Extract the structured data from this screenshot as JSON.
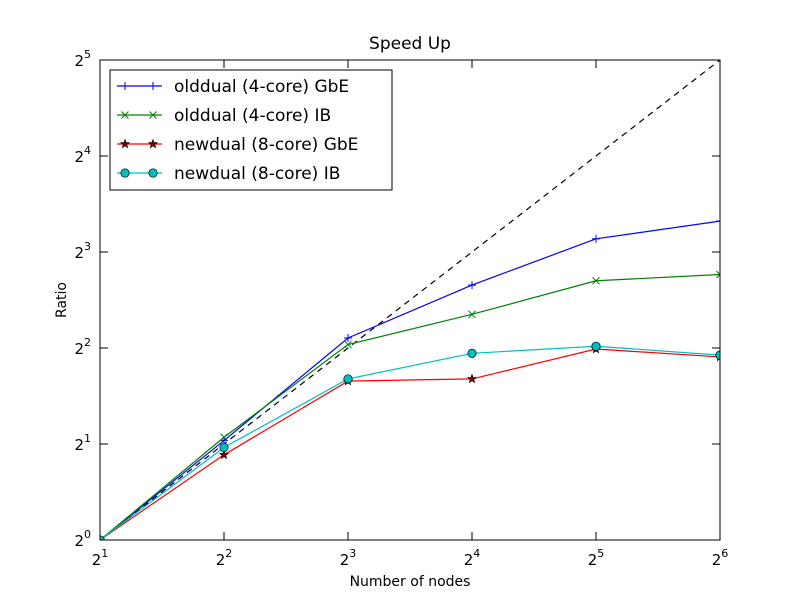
{
  "chart_data": {
    "type": "line",
    "title": "Speed Up",
    "xlabel": "Number of nodes",
    "ylabel": "Ratio",
    "x_scale": "log2",
    "y_scale": "log2",
    "xlim": [
      2,
      64
    ],
    "ylim": [
      1,
      32
    ],
    "x_ticks": [
      2,
      4,
      8,
      16,
      32,
      64
    ],
    "y_ticks": [
      1,
      2,
      4,
      8,
      16,
      32
    ],
    "x": [
      2,
      4,
      8,
      16,
      32,
      64
    ],
    "grid": false,
    "legend_position": "top-left",
    "ideal_line": {
      "style": "dashed",
      "color": "#000000",
      "x": [
        2,
        64
      ],
      "y": [
        1,
        32
      ]
    },
    "series": [
      {
        "name": "olddual (4-core) GbE",
        "color": "#0000ff",
        "marker": "plus",
        "values": [
          1,
          2.05,
          4.3,
          6.3,
          8.8,
          10.0
        ]
      },
      {
        "name": "olddual (4-core) IB",
        "color": "#008000",
        "marker": "x",
        "values": [
          1,
          2.1,
          4.1,
          5.1,
          6.5,
          6.8
        ]
      },
      {
        "name": "newdual (8-core) GbE",
        "color": "#ff0000",
        "marker": "star",
        "markerFill": "#800000",
        "values": [
          1,
          1.85,
          3.15,
          3.2,
          3.97,
          3.75
        ]
      },
      {
        "name": "newdual (8-core) IB",
        "color": "#00bfbf",
        "marker": "circle",
        "values": [
          1,
          1.95,
          3.2,
          3.85,
          4.05,
          3.8
        ]
      }
    ]
  }
}
